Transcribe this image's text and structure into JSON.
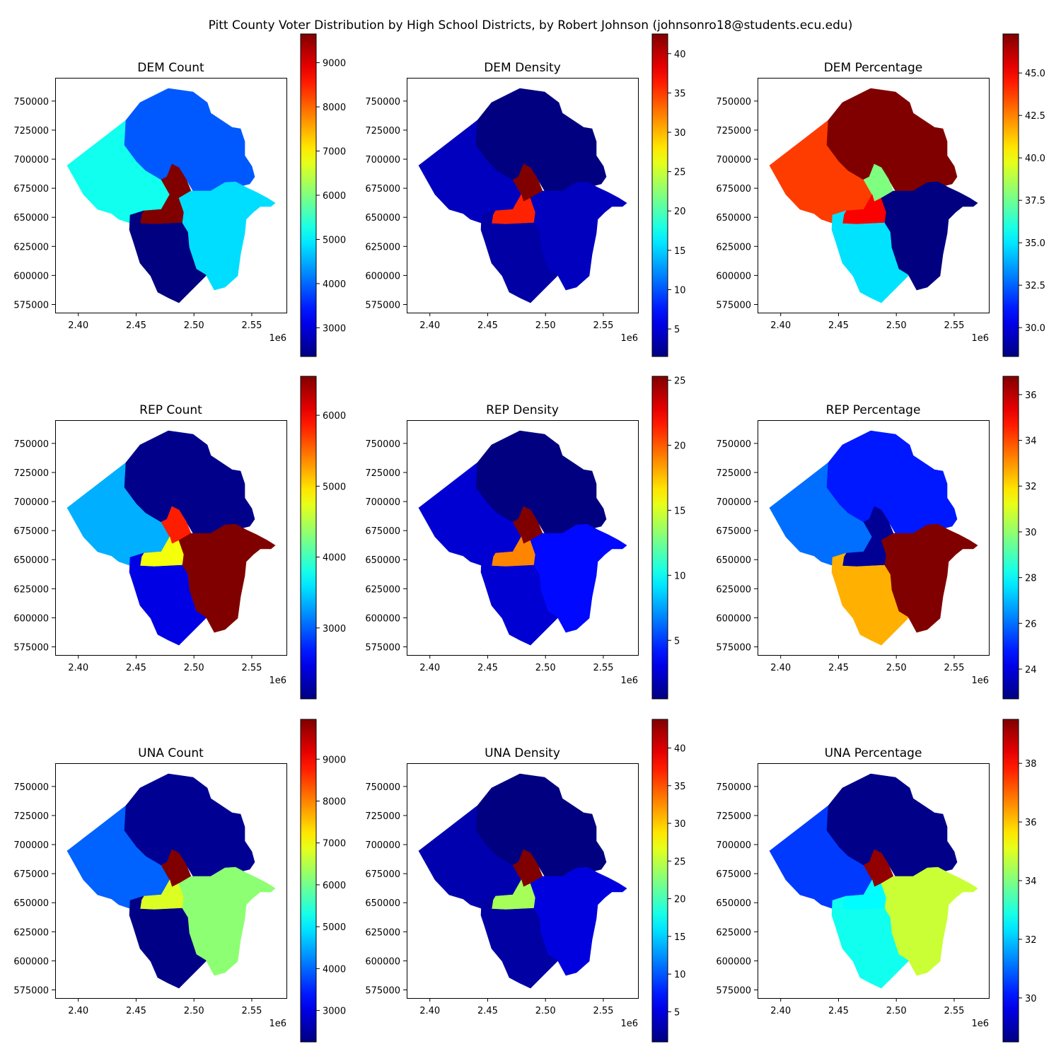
{
  "figure": {
    "title": "Pitt County Voter Distribution by High School Districts, by Robert Johnson (johnsonro18@students.ecu.edu)"
  },
  "colormap": "jet",
  "chart_data": [
    {
      "type": "choropleth",
      "title": "DEM Count",
      "xlim": [
        2.38,
        2.58
      ],
      "ylim": [
        568000,
        770000
      ],
      "x_ticks": [
        "2.40",
        "2.45",
        "2.50",
        "2.55"
      ],
      "x_offset_label": "1e6",
      "y_ticks": [
        "575000",
        "600000",
        "625000",
        "650000",
        "675000",
        "700000",
        "725000",
        "750000"
      ],
      "colorbar": {
        "min": 2350,
        "max": 9650,
        "ticks": [
          3000,
          4000,
          5000,
          6000,
          7000,
          8000,
          9000
        ]
      },
      "regions": {
        "northwest": 5200,
        "northeast": 3900,
        "center_north": 9650,
        "center_south": 9650,
        "southwest": 2350,
        "southeast": 4850
      }
    },
    {
      "type": "choropleth",
      "title": "DEM Density",
      "xlim": [
        2.38,
        2.58
      ],
      "ylim": [
        568000,
        770000
      ],
      "x_ticks": [
        "2.40",
        "2.45",
        "2.50",
        "2.55"
      ],
      "x_offset_label": "1e6",
      "y_ticks": [
        "575000",
        "600000",
        "625000",
        "650000",
        "675000",
        "700000",
        "725000",
        "750000"
      ],
      "colorbar": {
        "min": 1.5,
        "max": 42.5,
        "ticks": [
          5,
          10,
          15,
          20,
          25,
          30,
          35,
          40
        ]
      },
      "regions": {
        "northwest": 4,
        "northeast": 1.5,
        "center_north": 42.5,
        "center_south": 36,
        "southwest": 3,
        "southeast": 4
      }
    },
    {
      "type": "choropleth",
      "title": "DEM Percentage",
      "xlim": [
        2.38,
        2.58
      ],
      "ylim": [
        568000,
        770000
      ],
      "x_ticks": [
        "2.40",
        "2.45",
        "2.50",
        "2.55"
      ],
      "x_offset_label": "1e6",
      "y_ticks": [
        "575000",
        "600000",
        "625000",
        "650000",
        "675000",
        "700000",
        "725000",
        "750000"
      ],
      "colorbar": {
        "min": 28.3,
        "max": 47.3,
        "ticks": [
          "30.0",
          "32.5",
          "35.0",
          "37.5",
          "40.0",
          "42.5",
          "45.0"
        ]
      },
      "regions": {
        "northwest": 43.8,
        "northeast": 47.3,
        "center_north": 37.8,
        "center_south": 45.0,
        "southwest": 34.9,
        "southeast": 28.3
      }
    },
    {
      "type": "choropleth",
      "title": "REP Count",
      "xlim": [
        2.38,
        2.58
      ],
      "ylim": [
        568000,
        770000
      ],
      "x_ticks": [
        "2.40",
        "2.45",
        "2.50",
        "2.55"
      ],
      "x_offset_label": "1e6",
      "y_ticks": [
        "575000",
        "600000",
        "625000",
        "650000",
        "675000",
        "700000",
        "725000",
        "750000"
      ],
      "colorbar": {
        "min": 2000,
        "max": 6550,
        "ticks": [
          3000,
          4000,
          5000,
          6000
        ]
      },
      "regions": {
        "northwest": 3350,
        "northeast": 2050,
        "center_north": 5850,
        "center_south": 4800,
        "southwest": 2450,
        "southeast": 6550
      }
    },
    {
      "type": "choropleth",
      "title": "REP Density",
      "xlim": [
        2.38,
        2.58
      ],
      "ylim": [
        568000,
        770000
      ],
      "x_ticks": [
        "2.40",
        "2.45",
        "2.50",
        "2.55"
      ],
      "x_offset_label": "1e6",
      "y_ticks": [
        "575000",
        "600000",
        "625000",
        "650000",
        "675000",
        "700000",
        "725000",
        "750000"
      ],
      "colorbar": {
        "min": 0.5,
        "max": 25.3,
        "ticks": [
          5,
          10,
          15,
          20,
          25
        ]
      },
      "regions": {
        "northwest": 2.5,
        "northeast": 0.5,
        "center_north": 25.3,
        "center_south": 19,
        "southwest": 2.5,
        "southeast": 3.8
      }
    },
    {
      "type": "choropleth",
      "title": "REP Percentage",
      "xlim": [
        2.38,
        2.58
      ],
      "ylim": [
        568000,
        770000
      ],
      "x_ticks": [
        "2.40",
        "2.45",
        "2.50",
        "2.55"
      ],
      "x_offset_label": "1e6",
      "y_ticks": [
        "575000",
        "600000",
        "625000",
        "650000",
        "675000",
        "700000",
        "725000",
        "750000"
      ],
      "colorbar": {
        "min": 22.7,
        "max": 36.8,
        "ticks": [
          24,
          26,
          28,
          30,
          32,
          34,
          36
        ]
      },
      "regions": {
        "northwest": 26.0,
        "northeast": 24.8,
        "center_north": 23.0,
        "center_south": 23.0,
        "southwest": 32.6,
        "southeast": 36.8
      }
    },
    {
      "type": "choropleth",
      "title": "UNA Count",
      "xlim": [
        2.38,
        2.58
      ],
      "ylim": [
        568000,
        770000
      ],
      "x_ticks": [
        "2.40",
        "2.45",
        "2.50",
        "2.55"
      ],
      "x_offset_label": "1e6",
      "y_ticks": [
        "575000",
        "600000",
        "625000",
        "650000",
        "675000",
        "700000",
        "725000",
        "750000"
      ],
      "colorbar": {
        "min": 2250,
        "max": 9950,
        "ticks": [
          3000,
          4000,
          5000,
          6000,
          7000,
          8000,
          9000
        ]
      },
      "regions": {
        "northwest": 3950,
        "northeast": 2400,
        "center_north": 9950,
        "center_south": 6800,
        "southwest": 2300,
        "southeast": 6200
      }
    },
    {
      "type": "choropleth",
      "title": "UNA Density",
      "xlim": [
        2.38,
        2.58
      ],
      "ylim": [
        568000,
        770000
      ],
      "x_ticks": [
        "2.40",
        "2.45",
        "2.50",
        "2.55"
      ],
      "x_offset_label": "1e6",
      "y_ticks": [
        "575000",
        "600000",
        "625000",
        "650000",
        "675000",
        "700000",
        "725000",
        "750000"
      ],
      "colorbar": {
        "min": 1.0,
        "max": 43.8,
        "ticks": [
          5,
          10,
          15,
          20,
          25,
          30,
          35,
          40
        ]
      },
      "regions": {
        "northwest": 3,
        "northeast": 1.0,
        "center_north": 43.8,
        "center_south": 24,
        "southwest": 2.5,
        "southeast": 5
      }
    },
    {
      "type": "choropleth",
      "title": "UNA Percentage",
      "xlim": [
        2.38,
        2.58
      ],
      "ylim": [
        568000,
        770000
      ],
      "x_ticks": [
        "2.40",
        "2.45",
        "2.50",
        "2.55"
      ],
      "x_offset_label": "1e6",
      "y_ticks": [
        "575000",
        "600000",
        "625000",
        "650000",
        "675000",
        "700000",
        "725000",
        "750000"
      ],
      "colorbar": {
        "min": 28.5,
        "max": 39.5,
        "ticks": [
          30,
          32,
          34,
          36,
          38
        ]
      },
      "regions": {
        "northwest": 30.5,
        "northeast": 28.6,
        "center_north": 39.3,
        "center_south": 32.6,
        "southwest": 32.8,
        "southeast": 34.8
      }
    }
  ]
}
